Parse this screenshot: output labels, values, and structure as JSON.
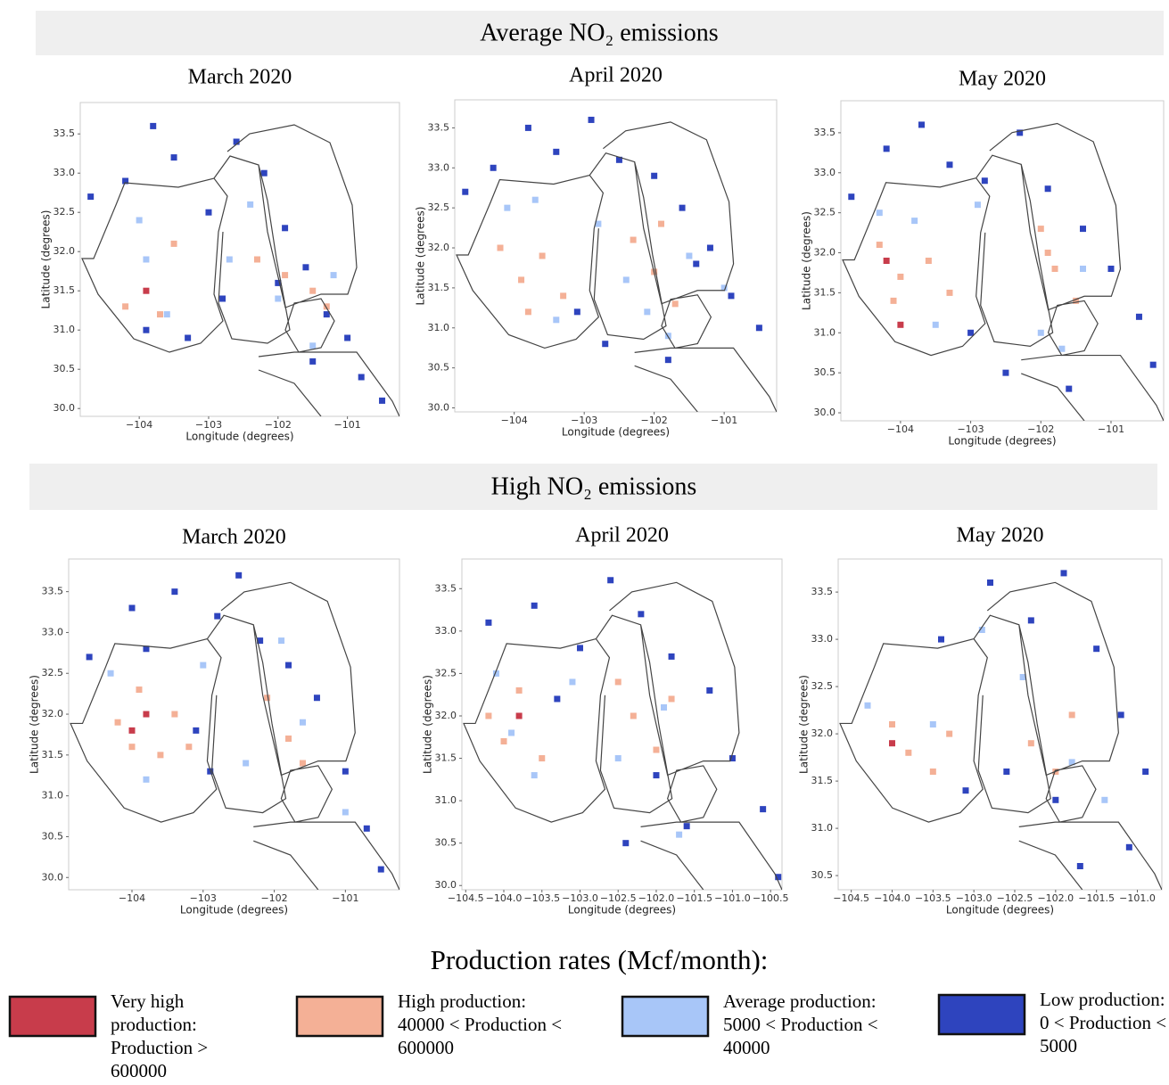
{
  "sections": [
    "Average NO₂ emissions",
    "High NO₂ emissions"
  ],
  "legend": {
    "title": "Production rates (Mcf/month):",
    "items": [
      {
        "lines": [
          "Very high",
          "production:",
          " Production >",
          "600000"
        ],
        "color": "#c83c4b"
      },
      {
        "lines": [
          "High production:",
          "40000 < Production <",
          "600000"
        ],
        "color": "#f4b096"
      },
      {
        "lines": [
          "Average production:",
          "5000 < Production <",
          "40000"
        ],
        "color": "#a8c6f8"
      },
      {
        "lines": [
          "Low production:",
          "0 < Production <",
          "5000"
        ],
        "color": "#2e44be"
      }
    ]
  },
  "chart_data": [
    {
      "type": "scatter",
      "title": "March 2020",
      "xlabel": "Longitude (degrees)",
      "ylabel": "Latitude (degrees)",
      "xlim": [
        -104.85,
        -100.25
      ],
      "ylim": [
        29.9,
        33.9
      ],
      "xticks": [
        {
          "value": -104,
          "label": "−104"
        },
        {
          "value": -103,
          "label": "−103"
        },
        {
          "value": -102,
          "label": "−102"
        },
        {
          "value": -101,
          "label": "−101"
        }
      ],
      "yticks": [
        {
          "value": 30,
          "label": "30.0"
        },
        30.5,
        {
          "value": 31,
          "label": "31.0"
        },
        31.5,
        {
          "value": 32,
          "label": "32.0"
        },
        32.5,
        {
          "value": 33,
          "label": "33.0"
        },
        33.5
      ],
      "series": [
        {
          "color": "#2e44be",
          "x": [
            -104.7,
            -104.2,
            -103.8,
            -103.5,
            -103.0,
            -102.6,
            -102.2,
            -101.9,
            -101.6,
            -101.3,
            -101.0,
            -100.8,
            -102.8,
            -103.3,
            -101.5,
            -100.5,
            -102.0,
            -103.9
          ],
          "y": [
            32.7,
            32.9,
            33.6,
            33.2,
            32.5,
            33.4,
            33.0,
            32.3,
            31.8,
            31.2,
            30.9,
            30.4,
            31.4,
            30.9,
            30.6,
            30.1,
            31.6,
            31.0
          ]
        },
        {
          "color": "#a8c6f8",
          "x": [
            -104.0,
            -103.6,
            -102.7,
            -102.0,
            -101.5,
            -101.2,
            -103.9,
            -102.4
          ],
          "y": [
            32.4,
            31.2,
            31.9,
            31.4,
            30.8,
            31.7,
            31.9,
            32.6
          ]
        },
        {
          "color": "#f4b096",
          "x": [
            -104.2,
            -103.7,
            -101.9,
            -101.5,
            -101.3,
            -102.3,
            -103.5
          ],
          "y": [
            31.3,
            31.2,
            31.7,
            31.5,
            31.3,
            31.9,
            32.1
          ]
        },
        {
          "color": "#c83c4b",
          "x": [
            -103.9
          ],
          "y": [
            31.5
          ]
        }
      ]
    },
    {
      "type": "scatter",
      "title": "April 2020",
      "xlabel": "Longitude (degrees)",
      "ylabel": "Latitude (degrees)",
      "xlim": [
        -104.85,
        -100.25
      ],
      "ylim": [
        29.95,
        33.85
      ],
      "xticks": [
        {
          "value": -104,
          "label": "−104"
        },
        {
          "value": -103,
          "label": "−103"
        },
        {
          "value": -102,
          "label": "−102"
        },
        {
          "value": -101,
          "label": "−101"
        }
      ],
      "yticks": [
        {
          "value": 30,
          "label": "30.0"
        },
        30.5,
        {
          "value": 31,
          "label": "31.0"
        },
        31.5,
        {
          "value": 32,
          "label": "32.0"
        },
        32.5,
        {
          "value": 33,
          "label": "33.0"
        },
        33.5
      ],
      "series": [
        {
          "color": "#2e44be",
          "x": [
            -104.7,
            -104.3,
            -103.8,
            -103.4,
            -102.9,
            -102.5,
            -102.0,
            -101.6,
            -101.2,
            -100.9,
            -100.5,
            -102.7,
            -101.8,
            -103.1,
            -101.4
          ],
          "y": [
            32.7,
            33.0,
            33.5,
            33.2,
            33.6,
            33.1,
            32.9,
            32.5,
            32.0,
            31.4,
            31.0,
            30.8,
            30.6,
            31.2,
            31.8
          ]
        },
        {
          "color": "#a8c6f8",
          "x": [
            -104.1,
            -103.4,
            -102.8,
            -102.1,
            -101.5,
            -101.8,
            -103.7,
            -102.4,
            -101.0
          ],
          "y": [
            32.5,
            31.1,
            32.3,
            31.2,
            31.9,
            30.9,
            32.6,
            31.6,
            31.5
          ]
        },
        {
          "color": "#f4b096",
          "x": [
            -104.2,
            -103.9,
            -103.6,
            -103.3,
            -102.3,
            -102.0,
            -101.7,
            -101.9,
            -103.8
          ],
          "y": [
            32.0,
            31.6,
            31.9,
            31.4,
            32.1,
            31.7,
            31.3,
            32.3,
            31.2
          ]
        }
      ]
    },
    {
      "type": "scatter",
      "title": "May 2020",
      "xlabel": "Longitude (degrees)",
      "ylabel": "Latitude (degrees)",
      "xlim": [
        -104.85,
        -100.25
      ],
      "ylim": [
        29.9,
        33.9
      ],
      "xticks": [
        {
          "value": -104,
          "label": "−104"
        },
        {
          "value": -103,
          "label": "−103"
        },
        {
          "value": -102,
          "label": "−102"
        },
        {
          "value": -101,
          "label": "−101"
        }
      ],
      "yticks": [
        {
          "value": 30,
          "label": "30.0"
        },
        30.5,
        {
          "value": 31,
          "label": "31.0"
        },
        31.5,
        {
          "value": 32,
          "label": "32.0"
        },
        32.5,
        {
          "value": 33,
          "label": "33.0"
        },
        33.5
      ],
      "series": [
        {
          "color": "#2e44be",
          "x": [
            -104.7,
            -104.2,
            -103.7,
            -103.3,
            -102.8,
            -102.3,
            -101.9,
            -101.4,
            -101.0,
            -100.6,
            -100.4,
            -102.5,
            -101.6,
            -103.0
          ],
          "y": [
            32.7,
            33.3,
            33.6,
            33.1,
            32.9,
            33.5,
            32.8,
            32.3,
            31.8,
            31.2,
            30.6,
            30.5,
            30.3,
            31.0
          ]
        },
        {
          "color": "#a8c6f8",
          "x": [
            -104.3,
            -103.5,
            -102.9,
            -102.0,
            -101.4,
            -101.7,
            -103.8
          ],
          "y": [
            32.5,
            31.1,
            32.6,
            31.0,
            31.8,
            30.8,
            32.4
          ]
        },
        {
          "color": "#f4b096",
          "x": [
            -104.3,
            -104.0,
            -103.6,
            -103.3,
            -102.0,
            -101.8,
            -101.5,
            -101.9,
            -104.1
          ],
          "y": [
            32.1,
            31.7,
            31.9,
            31.5,
            32.3,
            31.8,
            31.4,
            32.0,
            31.4
          ]
        },
        {
          "color": "#c83c4b",
          "x": [
            -104.2,
            -104.0
          ],
          "y": [
            31.9,
            31.1
          ]
        }
      ]
    },
    {
      "type": "scatter",
      "title": "March 2020",
      "xlabel": "Longitude (degrees)",
      "ylabel": "Latitude (degrees)",
      "xlim": [
        -104.89,
        -100.24
      ],
      "ylim": [
        29.85,
        33.9
      ],
      "xticks": [
        {
          "value": -104,
          "label": "−104"
        },
        {
          "value": -103,
          "label": "−103"
        },
        {
          "value": -102,
          "label": "−102"
        },
        {
          "value": -101,
          "label": "−101"
        }
      ],
      "yticks": [
        {
          "value": 30,
          "label": "30.0"
        },
        30.5,
        {
          "value": 31,
          "label": "31.0"
        },
        31.5,
        {
          "value": 32,
          "label": "32.0"
        },
        32.5,
        {
          "value": 33,
          "label": "33.0"
        },
        33.5
      ],
      "series": [
        {
          "color": "#2e44be",
          "x": [
            -104.6,
            -104.0,
            -103.4,
            -102.8,
            -102.5,
            -102.2,
            -101.8,
            -101.4,
            -101.0,
            -100.7,
            -103.1,
            -102.9,
            -100.5,
            -103.8
          ],
          "y": [
            32.7,
            33.3,
            33.5,
            33.2,
            33.7,
            32.9,
            32.6,
            32.2,
            31.3,
            30.6,
            31.8,
            31.3,
            30.1,
            32.8
          ]
        },
        {
          "color": "#a8c6f8",
          "x": [
            -104.3,
            -103.8,
            -103.0,
            -102.4,
            -101.6,
            -101.0,
            -101.9
          ],
          "y": [
            32.5,
            31.2,
            32.6,
            31.4,
            31.9,
            30.8,
            32.9
          ]
        },
        {
          "color": "#f4b096",
          "x": [
            -104.2,
            -103.9,
            -103.6,
            -103.4,
            -102.1,
            -101.8,
            -101.6,
            -104.0,
            -103.2
          ],
          "y": [
            31.9,
            32.3,
            31.5,
            32.0,
            32.2,
            31.7,
            31.4,
            31.6,
            31.6
          ]
        },
        {
          "color": "#c83c4b",
          "x": [
            -103.8,
            -104.0
          ],
          "y": [
            32.0,
            31.8
          ]
        }
      ]
    },
    {
      "type": "scatter",
      "title": "April 2020",
      "xlabel": "Longitude (degrees)",
      "ylabel": "Latitude (degrees)",
      "xlim": [
        -104.55,
        -100.35
      ],
      "ylim": [
        29.95,
        33.85
      ],
      "xticks": [
        {
          "value": -104.5,
          "label": "−104.5"
        },
        {
          "value": -104,
          "label": "−104.0"
        },
        {
          "value": -103.5,
          "label": "−103.5"
        },
        {
          "value": -103,
          "label": "−103.0"
        },
        {
          "value": -102.5,
          "label": "−102.5"
        },
        {
          "value": -102,
          "label": "−102.0"
        },
        {
          "value": -101.5,
          "label": "−101.5"
        },
        {
          "value": -101,
          "label": "−101.0"
        },
        {
          "value": -100.5,
          "label": "−100.5"
        }
      ],
      "yticks": [
        {
          "value": 30,
          "label": "30.0"
        },
        30.5,
        {
          "value": 31,
          "label": "31.0"
        },
        31.5,
        {
          "value": 32,
          "label": "32.0"
        },
        32.5,
        {
          "value": 33,
          "label": "33.0"
        },
        33.5
      ],
      "series": [
        {
          "color": "#2e44be",
          "x": [
            -104.2,
            -103.6,
            -103.0,
            -102.6,
            -102.2,
            -101.8,
            -101.3,
            -101.0,
            -100.6,
            -102.4,
            -101.6,
            -100.4,
            -103.3,
            -102.0
          ],
          "y": [
            33.1,
            33.3,
            32.8,
            33.6,
            33.2,
            32.7,
            32.3,
            31.5,
            30.9,
            30.5,
            30.7,
            30.1,
            32.2,
            31.3
          ]
        },
        {
          "color": "#a8c6f8",
          "x": [
            -104.1,
            -103.6,
            -103.1,
            -102.5,
            -101.9,
            -101.7,
            -103.9
          ],
          "y": [
            32.5,
            31.3,
            32.4,
            31.5,
            32.1,
            30.6,
            31.8
          ]
        },
        {
          "color": "#f4b096",
          "x": [
            -104.2,
            -104.0,
            -103.8,
            -103.5,
            -102.3,
            -102.0,
            -101.8,
            -102.5
          ],
          "y": [
            32.0,
            31.7,
            32.3,
            31.5,
            32.0,
            31.6,
            32.2,
            32.4
          ]
        },
        {
          "color": "#c83c4b",
          "x": [
            -103.8
          ],
          "y": [
            32.0
          ]
        }
      ]
    },
    {
      "type": "scatter",
      "title": "May 2020",
      "xlabel": "Longitude (degrees)",
      "ylabel": "Latitude (degrees)",
      "xlim": [
        -104.66,
        -100.7
      ],
      "ylim": [
        30.35,
        33.85
      ],
      "xticks": [
        {
          "value": -104.5,
          "label": "−104.5"
        },
        {
          "value": -104,
          "label": "−104.0"
        },
        {
          "value": -103.5,
          "label": "−103.5"
        },
        {
          "value": -103,
          "label": "−103.0"
        },
        {
          "value": -102.5,
          "label": "−102.5"
        },
        {
          "value": -102,
          "label": "−102.0"
        },
        {
          "value": -101.5,
          "label": "−101.5"
        },
        {
          "value": -101,
          "label": "−101.0"
        }
      ],
      "yticks": [
        30.5,
        {
          "value": 31,
          "label": "31.0"
        },
        31.5,
        {
          "value": 32,
          "label": "32.0"
        },
        32.5,
        {
          "value": 33,
          "label": "33.0"
        },
        33.5
      ],
      "series": [
        {
          "color": "#2e44be",
          "x": [
            -103.4,
            -102.8,
            -102.3,
            -101.9,
            -101.5,
            -101.2,
            -100.9,
            -102.6,
            -102.0,
            -101.1,
            -103.1,
            -101.7
          ],
          "y": [
            33.0,
            33.6,
            33.2,
            33.7,
            32.9,
            32.2,
            31.6,
            31.6,
            31.3,
            30.8,
            31.4,
            30.6
          ]
        },
        {
          "color": "#a8c6f8",
          "x": [
            -104.3,
            -103.5,
            -102.4,
            -101.8,
            -101.4,
            -102.9
          ],
          "y": [
            32.3,
            32.1,
            32.6,
            31.7,
            31.3,
            33.1
          ]
        },
        {
          "color": "#f4b096",
          "x": [
            -104.0,
            -103.8,
            -103.5,
            -103.3,
            -102.3,
            -102.0,
            -101.8
          ],
          "y": [
            32.1,
            31.8,
            31.6,
            32.0,
            31.9,
            31.6,
            32.2
          ]
        },
        {
          "color": "#c83c4b",
          "x": [
            -104.0
          ],
          "y": [
            31.9
          ]
        }
      ]
    }
  ]
}
